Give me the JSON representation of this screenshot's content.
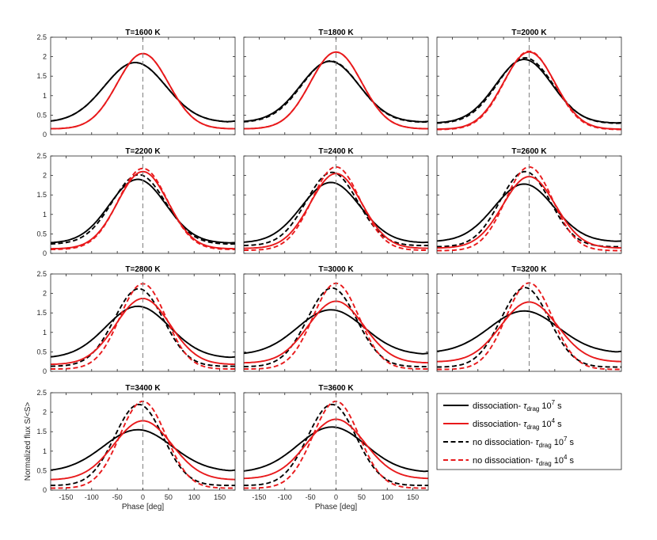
{
  "chart_data": {
    "type": "line",
    "layout": "4x3 grid of subplots",
    "xlabel": "Phase [deg]",
    "ylabel": "Normalized flux S/<S>",
    "xlim": [
      -180,
      180
    ],
    "ylim": [
      0,
      2.5
    ],
    "xticks": [
      -150,
      -100,
      -50,
      0,
      50,
      100,
      150
    ],
    "yticks": [
      0,
      0.5,
      1,
      1.5,
      2,
      2.5
    ],
    "reference_line": {
      "x": 0,
      "style": "dashed",
      "color": "#808080"
    },
    "legend": {
      "location": "right of bottom row",
      "entries": [
        {
          "id": "diss7",
          "prefix": "dissociation- ",
          "tau_sub": "drag",
          "exp_base": "10",
          "exp": "7",
          "unit": " s",
          "color": "#000000",
          "style": "solid"
        },
        {
          "id": "diss4",
          "prefix": "dissociation- ",
          "tau_sub": "drag",
          "exp_base": "10",
          "exp": "4",
          "unit": " s",
          "color": "#e8191b",
          "style": "solid"
        },
        {
          "id": "nodiss7",
          "prefix": "no dissociation- ",
          "tau_sub": "drag",
          "exp_base": "10",
          "exp": "7",
          "unit": " s",
          "color": "#000000",
          "style": "dashed"
        },
        {
          "id": "nodiss4",
          "prefix": "no dissociation- ",
          "tau_sub": "drag",
          "exp_base": "10",
          "exp": "4",
          "unit": " s",
          "color": "#e8191b",
          "style": "dashed"
        }
      ]
    },
    "panels": [
      {
        "title": "T=1600 K",
        "series": {
          "diss7": {
            "max": 1.85,
            "min": 0.33,
            "peak_deg": -15,
            "sigma": 60
          },
          "diss4": {
            "max": 2.08,
            "min": 0.15,
            "peak_deg": 0,
            "sigma": 50
          },
          "nodiss7": {
            "max": 1.85,
            "min": 0.33,
            "peak_deg": -15,
            "sigma": 60
          },
          "nodiss4": {
            "max": 2.08,
            "min": 0.15,
            "peak_deg": 0,
            "sigma": 50
          }
        }
      },
      {
        "title": "T=1800 K",
        "series": {
          "diss7": {
            "max": 1.88,
            "min": 0.33,
            "peak_deg": -12,
            "sigma": 57
          },
          "diss4": {
            "max": 2.12,
            "min": 0.15,
            "peak_deg": 0,
            "sigma": 50
          },
          "nodiss7": {
            "max": 1.89,
            "min": 0.32,
            "peak_deg": -11,
            "sigma": 56
          },
          "nodiss4": {
            "max": 2.12,
            "min": 0.15,
            "peak_deg": 0,
            "sigma": 50
          }
        }
      },
      {
        "title": "T=2000 K",
        "series": {
          "diss7": {
            "max": 1.93,
            "min": 0.3,
            "peak_deg": -10,
            "sigma": 55
          },
          "diss4": {
            "max": 2.12,
            "min": 0.14,
            "peak_deg": 0,
            "sigma": 50
          },
          "nodiss7": {
            "max": 1.97,
            "min": 0.29,
            "peak_deg": -8,
            "sigma": 54
          },
          "nodiss4": {
            "max": 2.14,
            "min": 0.13,
            "peak_deg": 0,
            "sigma": 49
          }
        }
      },
      {
        "title": "T=2200 K",
        "series": {
          "diss7": {
            "max": 1.9,
            "min": 0.27,
            "peak_deg": -10,
            "sigma": 55
          },
          "diss4": {
            "max": 2.1,
            "min": 0.12,
            "peak_deg": 0,
            "sigma": 49
          },
          "nodiss7": {
            "max": 2.02,
            "min": 0.24,
            "peak_deg": -8,
            "sigma": 52
          },
          "nodiss4": {
            "max": 2.18,
            "min": 0.1,
            "peak_deg": 0,
            "sigma": 48
          }
        }
      },
      {
        "title": "T=2400 K",
        "series": {
          "diss7": {
            "max": 1.82,
            "min": 0.28,
            "peak_deg": -10,
            "sigma": 57
          },
          "diss4": {
            "max": 2.05,
            "min": 0.13,
            "peak_deg": 0,
            "sigma": 50
          },
          "nodiss7": {
            "max": 2.08,
            "min": 0.2,
            "peak_deg": -8,
            "sigma": 50
          },
          "nodiss4": {
            "max": 2.22,
            "min": 0.08,
            "peak_deg": 0,
            "sigma": 47
          }
        }
      },
      {
        "title": "T=2600 K",
        "series": {
          "diss7": {
            "max": 1.78,
            "min": 0.31,
            "peak_deg": -10,
            "sigma": 58
          },
          "diss4": {
            "max": 1.97,
            "min": 0.14,
            "peak_deg": 0,
            "sigma": 51
          },
          "nodiss7": {
            "max": 2.1,
            "min": 0.17,
            "peak_deg": -8,
            "sigma": 49
          },
          "nodiss4": {
            "max": 2.22,
            "min": 0.07,
            "peak_deg": 0,
            "sigma": 46
          }
        }
      },
      {
        "title": "T=2800 K",
        "series": {
          "diss7": {
            "max": 1.67,
            "min": 0.36,
            "peak_deg": -10,
            "sigma": 62
          },
          "diss4": {
            "max": 1.87,
            "min": 0.18,
            "peak_deg": 0,
            "sigma": 53
          },
          "nodiss7": {
            "max": 2.12,
            "min": 0.13,
            "peak_deg": -8,
            "sigma": 48
          },
          "nodiss4": {
            "max": 2.25,
            "min": 0.06,
            "peak_deg": 0,
            "sigma": 45
          }
        }
      },
      {
        "title": "T=3000 K",
        "series": {
          "diss7": {
            "max": 1.58,
            "min": 0.45,
            "peak_deg": -10,
            "sigma": 65
          },
          "diss4": {
            "max": 1.8,
            "min": 0.22,
            "peak_deg": 0,
            "sigma": 54
          },
          "nodiss7": {
            "max": 2.14,
            "min": 0.12,
            "peak_deg": -8,
            "sigma": 48
          },
          "nodiss4": {
            "max": 2.26,
            "min": 0.06,
            "peak_deg": 0,
            "sigma": 45
          }
        }
      },
      {
        "title": "T=3200 K",
        "series": {
          "diss7": {
            "max": 1.55,
            "min": 0.5,
            "peak_deg": -10,
            "sigma": 67
          },
          "diss4": {
            "max": 1.78,
            "min": 0.25,
            "peak_deg": 0,
            "sigma": 55
          },
          "nodiss7": {
            "max": 2.15,
            "min": 0.11,
            "peak_deg": -8,
            "sigma": 47
          },
          "nodiss4": {
            "max": 2.27,
            "min": 0.05,
            "peak_deg": 0,
            "sigma": 45
          }
        }
      },
      {
        "title": "T=3400 K",
        "series": {
          "diss7": {
            "max": 1.55,
            "min": 0.5,
            "peak_deg": -10,
            "sigma": 67
          },
          "diss4": {
            "max": 1.78,
            "min": 0.27,
            "peak_deg": 0,
            "sigma": 56
          },
          "nodiss7": {
            "max": 2.2,
            "min": 0.12,
            "peak_deg": -8,
            "sigma": 47
          },
          "nodiss4": {
            "max": 2.28,
            "min": 0.05,
            "peak_deg": 0,
            "sigma": 45
          }
        }
      },
      {
        "title": "T=3600 K",
        "series": {
          "diss7": {
            "max": 1.62,
            "min": 0.48,
            "peak_deg": -8,
            "sigma": 66
          },
          "diss4": {
            "max": 1.82,
            "min": 0.3,
            "peak_deg": 0,
            "sigma": 56
          },
          "nodiss7": {
            "max": 2.2,
            "min": 0.12,
            "peak_deg": -8,
            "sigma": 47
          },
          "nodiss4": {
            "max": 2.28,
            "min": 0.05,
            "peak_deg": 0,
            "sigma": 45
          }
        }
      }
    ]
  }
}
